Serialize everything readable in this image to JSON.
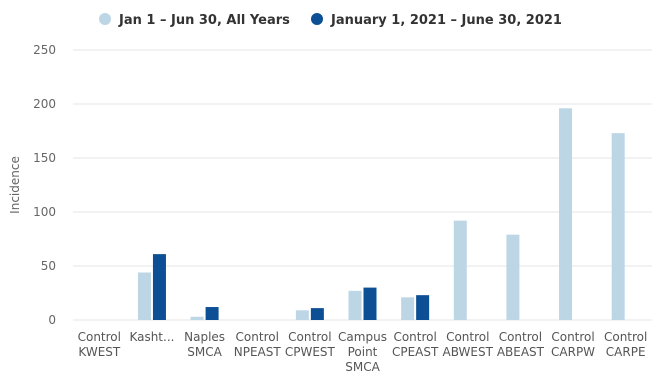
{
  "chart_data": {
    "type": "bar",
    "title": "",
    "xlabel": "",
    "ylabel": "Incidence",
    "ylim": [
      0,
      250
    ],
    "yticks": [
      0,
      50,
      100,
      150,
      200,
      250
    ],
    "grid": true,
    "legend_position": "top-center",
    "categories": [
      [
        "Control",
        "KWEST"
      ],
      [
        "Kasht..."
      ],
      [
        "Naples",
        "SMCA"
      ],
      [
        "Control",
        "NPEAST"
      ],
      [
        "Control",
        "CPWEST"
      ],
      [
        "Campus",
        "Point",
        "SMCA"
      ],
      [
        "Control",
        "CPEAST"
      ],
      [
        "Control",
        "ABWEST"
      ],
      [
        "Control",
        "ABEAST"
      ],
      [
        "Control",
        "CARPW"
      ],
      [
        "Control",
        "CARPE"
      ]
    ],
    "series": [
      {
        "name": "Jan 1 – Jun 30, All Years",
        "color": "#bcd6e6",
        "values": [
          0,
          44,
          3,
          0,
          9,
          27,
          21,
          92,
          79,
          196,
          173
        ]
      },
      {
        "name": "January 1, 2021 – June 30, 2021",
        "color": "#0d4f94",
        "values": [
          0,
          61,
          12,
          0,
          11,
          30,
          23,
          0,
          0,
          0,
          0
        ]
      }
    ]
  }
}
